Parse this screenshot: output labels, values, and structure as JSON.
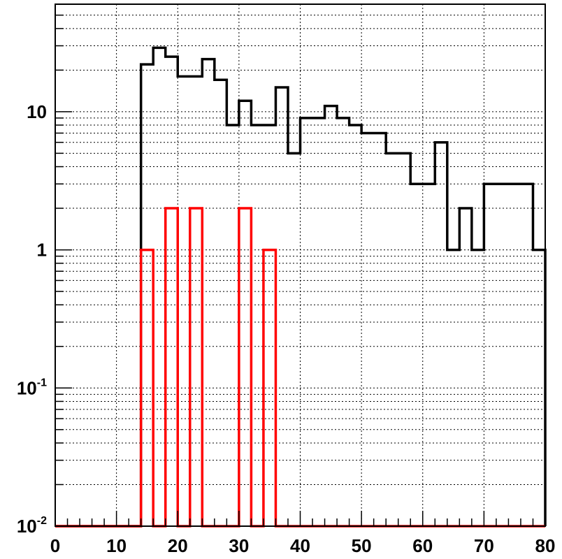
{
  "chart_data": {
    "type": "histogram",
    "title": "",
    "xlabel": "",
    "ylabel": "",
    "xlim": [
      0,
      80
    ],
    "ylim": [
      0.01,
      60
    ],
    "y_scale": "log",
    "grid": true,
    "bin_width": 2,
    "x_ticks": [
      0,
      10,
      20,
      30,
      40,
      50,
      60,
      70,
      80
    ],
    "x_tick_labels": [
      "0",
      "10",
      "20",
      "30",
      "40",
      "50",
      "60",
      "70",
      "80"
    ],
    "y_ticks": [
      {
        "value": 0.01,
        "base": "10",
        "exp": "-2"
      },
      {
        "value": 0.1,
        "base": "10",
        "exp": "-1"
      },
      {
        "value": 1,
        "base": "1",
        "exp": ""
      },
      {
        "value": 10,
        "base": "10",
        "exp": ""
      }
    ],
    "series": [
      {
        "color": "#000000",
        "bin_starts": [
          14,
          16,
          18,
          20,
          22,
          24,
          26,
          28,
          30,
          32,
          34,
          36,
          38,
          40,
          42,
          44,
          46,
          48,
          50,
          52,
          54,
          56,
          58,
          60,
          62,
          64,
          66,
          68,
          70,
          72,
          74,
          76,
          78
        ],
        "values": [
          22,
          29,
          25,
          18,
          18,
          24,
          17,
          8,
          12,
          8,
          8,
          15,
          5,
          9,
          9,
          11,
          9,
          8,
          7,
          7,
          5,
          5,
          3,
          3,
          6,
          1,
          2,
          1,
          3,
          3,
          3,
          3,
          1
        ]
      },
      {
        "color": "#ff0000",
        "bin_starts": [
          14,
          18,
          22,
          30,
          34
        ],
        "values": [
          1,
          2,
          2,
          2,
          1
        ]
      }
    ]
  }
}
